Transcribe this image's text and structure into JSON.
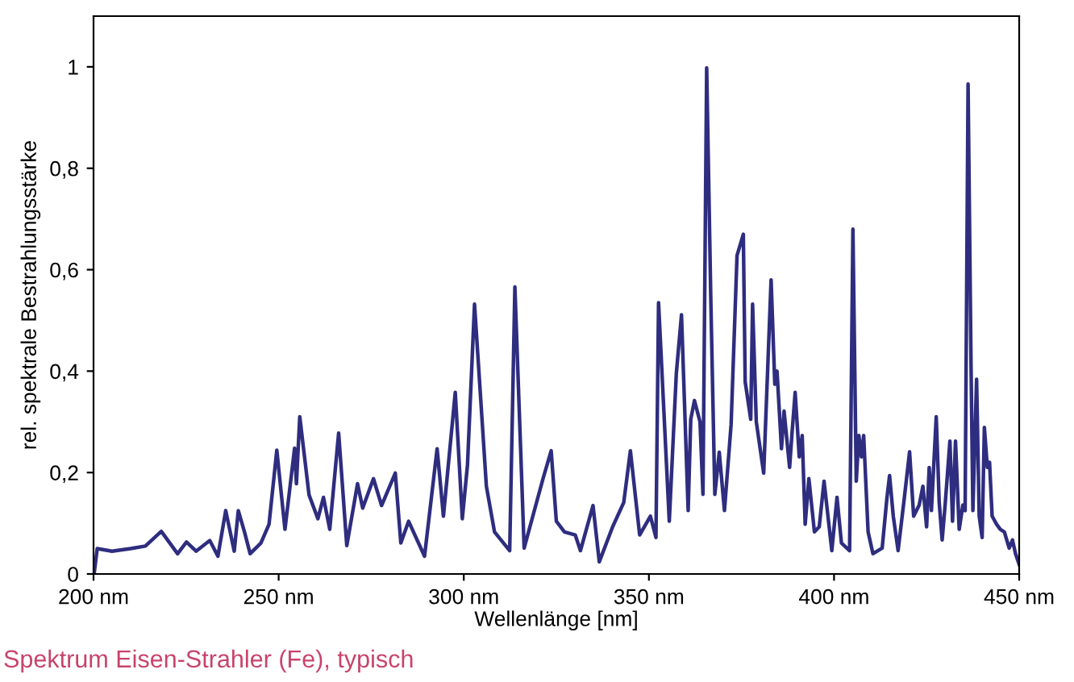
{
  "chart_data": {
    "type": "line",
    "xlabel": "Wellenlänge [nm]",
    "ylabel": "rel. spektrale Bestrahlungsstärke",
    "annotations": [
      "Spektrum Eisen-Strahler (Fe), typisch"
    ],
    "xlim": [
      200,
      450
    ],
    "ylim": [
      0,
      1.1
    ],
    "xticks": [
      {
        "value": 200,
        "label": "200 nm"
      },
      {
        "value": 250,
        "label": "250 nm"
      },
      {
        "value": 300,
        "label": "300 nm"
      },
      {
        "value": 350,
        "label": "350 nm"
      },
      {
        "value": 400,
        "label": "400 nm"
      },
      {
        "value": 450,
        "label": "450 nm"
      }
    ],
    "yticks": [
      0,
      {
        "value": 0.2,
        "label": "0,2"
      },
      {
        "value": 0.4,
        "label": "0,4"
      },
      {
        "value": 0.6,
        "label": "0,6"
      },
      {
        "value": 0.8,
        "label": "0,8"
      },
      1
    ],
    "grid": false,
    "legend": false,
    "marker": "none",
    "line_style": "solid",
    "series": [
      {
        "color": "#2e2d7f",
        "x": [
          200.2,
          201,
          205,
          210,
          214,
          218.3,
          222.7,
          225.1,
          227.7,
          231.4,
          233.6,
          235.7,
          238,
          239.1,
          240.8,
          242.3,
          245.2,
          247.4,
          249.5,
          251.7,
          254.3,
          254.8,
          255.7,
          258.2,
          260.6,
          262.1,
          263.8,
          266.2,
          268.4,
          271.3,
          272.7,
          275.6,
          277.8,
          281.5,
          283,
          285.1,
          289.4,
          292.8,
          294.5,
          297.7,
          299.6,
          301,
          302.9,
          306.1,
          308.3,
          312.4,
          313.8,
          316.3,
          321.4,
          323.6,
          325,
          327.2,
          330.1,
          331.5,
          334.9,
          336.6,
          340.2,
          343.2,
          345,
          347.5,
          350.4,
          351.9,
          352.6,
          355.5,
          357.4,
          358.8,
          360.6,
          361.3,
          362.3,
          363.8,
          364.6,
          365.6,
          366.7,
          367.8,
          369,
          370.4,
          372.2,
          373.8,
          375.5,
          376,
          377.5,
          378,
          379,
          381,
          383,
          384,
          384.6,
          385.8,
          386.5,
          388,
          388.6,
          389.5,
          390.6,
          391.4,
          392.2,
          393.2,
          394.7,
          396,
          397.3,
          399.4,
          400.8,
          402,
          404.2,
          405.1,
          406,
          406.7,
          407.4,
          408,
          409.2,
          410.5,
          413,
          414.3,
          415,
          416,
          417.3,
          419,
          420.4,
          421.5,
          423,
          424,
          425,
          425.7,
          426.3,
          426.9,
          427.6,
          428.4,
          429.2,
          430,
          431.3,
          432,
          432.8,
          433.8,
          434.8,
          435.4,
          436.2,
          437,
          437.5,
          438.5,
          439.2,
          440,
          440.6,
          441.4,
          442,
          442.7,
          443.9,
          444.9,
          446,
          447.3,
          448.2,
          449,
          450
        ],
        "values": [
          0.003,
          0.05,
          0.045,
          0.05,
          0.055,
          0.084,
          0.04,
          0.063,
          0.045,
          0.066,
          0.035,
          0.125,
          0.045,
          0.125,
          0.082,
          0.04,
          0.061,
          0.098,
          0.244,
          0.088,
          0.248,
          0.178,
          0.31,
          0.156,
          0.109,
          0.151,
          0.088,
          0.278,
          0.056,
          0.178,
          0.13,
          0.188,
          0.135,
          0.199,
          0.061,
          0.104,
          0.035,
          0.247,
          0.114,
          0.358,
          0.109,
          0.215,
          0.532,
          0.173,
          0.083,
          0.046,
          0.566,
          0.051,
          0.188,
          0.243,
          0.104,
          0.083,
          0.077,
          0.046,
          0.135,
          0.024,
          0.093,
          0.141,
          0.243,
          0.077,
          0.114,
          0.072,
          0.535,
          0.104,
          0.395,
          0.511,
          0.125,
          0.305,
          0.342,
          0.3,
          0.157,
          0.998,
          0.548,
          0.157,
          0.24,
          0.125,
          0.295,
          0.628,
          0.67,
          0.379,
          0.305,
          0.532,
          0.3,
          0.199,
          0.58,
          0.374,
          0.4,
          0.247,
          0.321,
          0.21,
          0.273,
          0.358,
          0.231,
          0.273,
          0.098,
          0.188,
          0.083,
          0.093,
          0.183,
          0.046,
          0.151,
          0.061,
          0.046,
          0.68,
          0.183,
          0.273,
          0.231,
          0.273,
          0.083,
          0.04,
          0.051,
          0.151,
          0.194,
          0.114,
          0.046,
          0.151,
          0.241,
          0.114,
          0.136,
          0.173,
          0.093,
          0.21,
          0.125,
          0.21,
          0.31,
          0.141,
          0.067,
          0.136,
          0.262,
          0.104,
          0.262,
          0.088,
          0.136,
          0.125,
          0.966,
          0.411,
          0.125,
          0.384,
          0.114,
          0.072,
          0.289,
          0.21,
          0.22,
          0.114,
          0.098,
          0.088,
          0.083,
          0.051,
          0.067,
          0.04,
          0.019
        ]
      }
    ]
  }
}
